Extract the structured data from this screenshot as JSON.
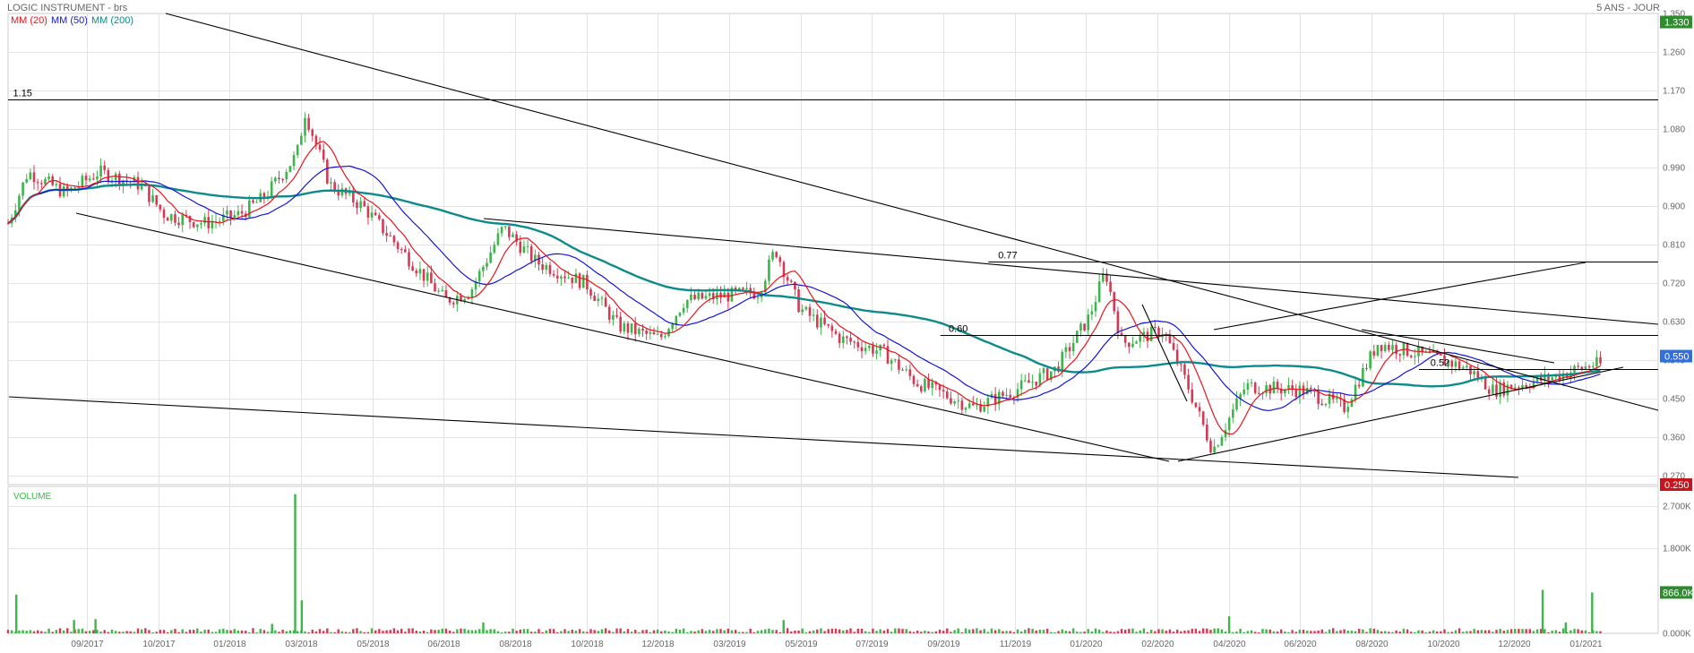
{
  "header": {
    "title": "LOGIC INSTRUMENT - brs",
    "range": "5 ANS - JOUR"
  },
  "legend": [
    {
      "label": "MM (20)",
      "color": "#e8141c"
    },
    {
      "label": "MM (50)",
      "color": "#1515d8"
    },
    {
      "label": "MM (200)",
      "color": "#0d8a8a"
    }
  ],
  "colors": {
    "up": "#3db54a",
    "down": "#d43a55",
    "grid": "#e3e3e3",
    "badge_high": "#2e8b2e",
    "badge_last": "#2f6fe0",
    "badge_low": "#c4161c",
    "badge_volume": "#2e8b2e"
  },
  "chart_data": {
    "type": "candlestick",
    "price_axis": {
      "ylim": [
        0.25,
        1.35
      ],
      "ticks": [
        "1.350",
        "1.260",
        "1.170",
        "1.080",
        "0.990",
        "0.900",
        "0.810",
        "0.720",
        "0.630",
        "0.540",
        "0.450",
        "0.360",
        "0.270"
      ],
      "tick_values": [
        1.35,
        1.26,
        1.17,
        1.08,
        0.99,
        0.9,
        0.81,
        0.72,
        0.63,
        0.54,
        0.45,
        0.36,
        0.27
      ],
      "badges": [
        {
          "label": "1.330",
          "value": 1.33,
          "role": "high"
        },
        {
          "label": "0.550",
          "value": 0.55,
          "role": "last"
        },
        {
          "label": "0.250",
          "value": 0.25,
          "role": "low"
        }
      ]
    },
    "x_axis": {
      "labels": [
        "09/2017",
        "10/2017",
        "01/2018",
        "03/2018",
        "05/2018",
        "06/2018",
        "08/2018",
        "10/2018",
        "12/2018",
        "03/2019",
        "05/2019",
        "07/2019",
        "09/2019",
        "11/2019",
        "01/2020",
        "02/2020",
        "04/2020",
        "06/2020",
        "08/2020",
        "10/2020",
        "12/2020",
        "01/2021"
      ]
    },
    "levels": [
      {
        "label": "1.15",
        "value": 1.15
      },
      {
        "label": "0.77",
        "value": 0.77
      },
      {
        "label": "0.60",
        "value": 0.6
      },
      {
        "label": "0.52",
        "value": 0.52
      }
    ],
    "price_path": [
      [
        0,
        0.86
      ],
      [
        0.012,
        0.98
      ],
      [
        0.035,
        0.93
      ],
      [
        0.055,
        0.98
      ],
      [
        0.08,
        0.95
      ],
      [
        0.095,
        0.88
      ],
      [
        0.12,
        0.86
      ],
      [
        0.14,
        0.88
      ],
      [
        0.155,
        0.92
      ],
      [
        0.175,
        1.02
      ],
      [
        0.18,
        1.12
      ],
      [
        0.195,
        0.95
      ],
      [
        0.215,
        0.9
      ],
      [
        0.24,
        0.79
      ],
      [
        0.265,
        0.68
      ],
      [
        0.28,
        0.7
      ],
      [
        0.3,
        0.85
      ],
      [
        0.32,
        0.77
      ],
      [
        0.35,
        0.72
      ],
      [
        0.37,
        0.62
      ],
      [
        0.395,
        0.59
      ],
      [
        0.41,
        0.68
      ],
      [
        0.455,
        0.7
      ],
      [
        0.465,
        0.8
      ],
      [
        0.48,
        0.66
      ],
      [
        0.505,
        0.59
      ],
      [
        0.53,
        0.56
      ],
      [
        0.55,
        0.49
      ],
      [
        0.585,
        0.43
      ],
      [
        0.61,
        0.47
      ],
      [
        0.635,
        0.52
      ],
      [
        0.655,
        0.64
      ],
      [
        0.665,
        0.75
      ],
      [
        0.675,
        0.58
      ],
      [
        0.7,
        0.61
      ],
      [
        0.715,
        0.48
      ],
      [
        0.73,
        0.33
      ],
      [
        0.75,
        0.48
      ],
      [
        0.785,
        0.47
      ],
      [
        0.81,
        0.43
      ],
      [
        0.83,
        0.58
      ],
      [
        0.87,
        0.54
      ],
      [
        0.885,
        0.52
      ],
      [
        0.9,
        0.47
      ],
      [
        0.935,
        0.5
      ],
      [
        0.96,
        0.53
      ]
    ],
    "volume_axis": {
      "ylim": [
        0,
        3000
      ],
      "ticks": [
        "2.700K",
        "1.800K",
        "0.000K"
      ],
      "tick_values": [
        2700,
        1800,
        0
      ],
      "label": "VOLUME",
      "badge": {
        "label": "866.0K",
        "value": 866
      }
    },
    "volume_spikes": [
      [
        0.005,
        820
      ],
      [
        0.04,
        280
      ],
      [
        0.053,
        300
      ],
      [
        0.16,
        200
      ],
      [
        0.174,
        2950
      ],
      [
        0.178,
        700
      ],
      [
        0.288,
        230
      ],
      [
        0.47,
        280
      ],
      [
        0.74,
        360
      ],
      [
        0.93,
        920
      ],
      [
        0.944,
        230
      ],
      [
        0.96,
        866
      ]
    ]
  }
}
